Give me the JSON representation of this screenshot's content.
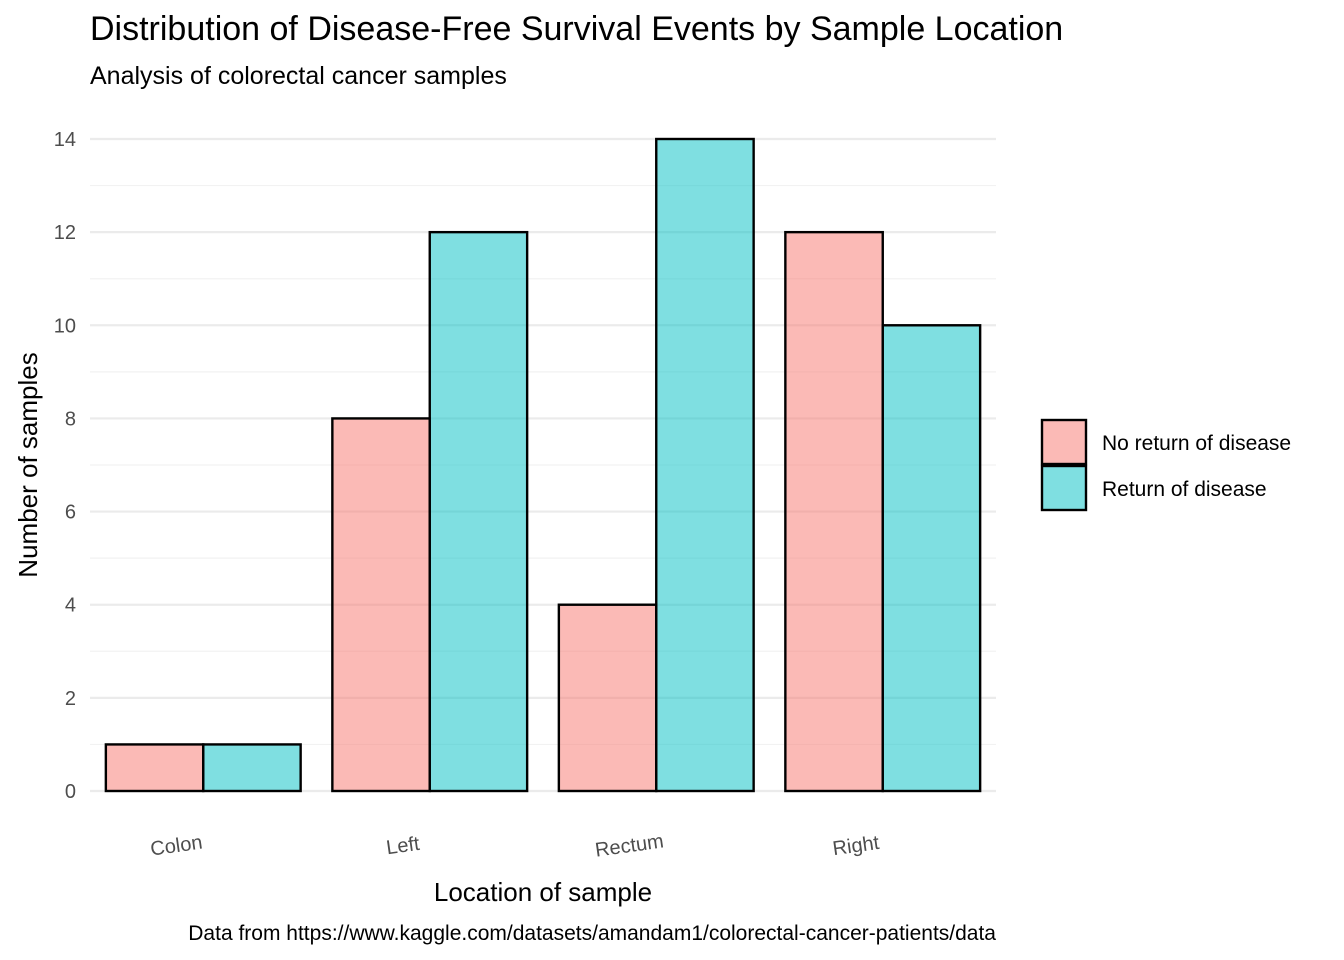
{
  "chart_data": {
    "type": "bar",
    "title": "Distribution of Disease-Free Survival Events by Sample Location",
    "subtitle": "Analysis of colorectal cancer samples",
    "xlabel": "Location of sample",
    "ylabel": "Number of samples",
    "caption": "Data from https://www.kaggle.com/datasets/amandam1/colorectal-cancer-patients/data",
    "categories": [
      "Colon",
      "Left",
      "Rectum",
      "Right"
    ],
    "series": [
      {
        "name": "No return of disease",
        "values": [
          1,
          8,
          4,
          12
        ],
        "color": "#F8766D"
      },
      {
        "name": "Return of disease",
        "values": [
          1,
          12,
          14,
          10
        ],
        "color": "#00BFC4"
      }
    ],
    "ylim": [
      0,
      14
    ],
    "yticks": [
      0,
      2,
      4,
      6,
      8,
      10,
      12,
      14
    ],
    "grid": true,
    "legend_position": "right"
  }
}
